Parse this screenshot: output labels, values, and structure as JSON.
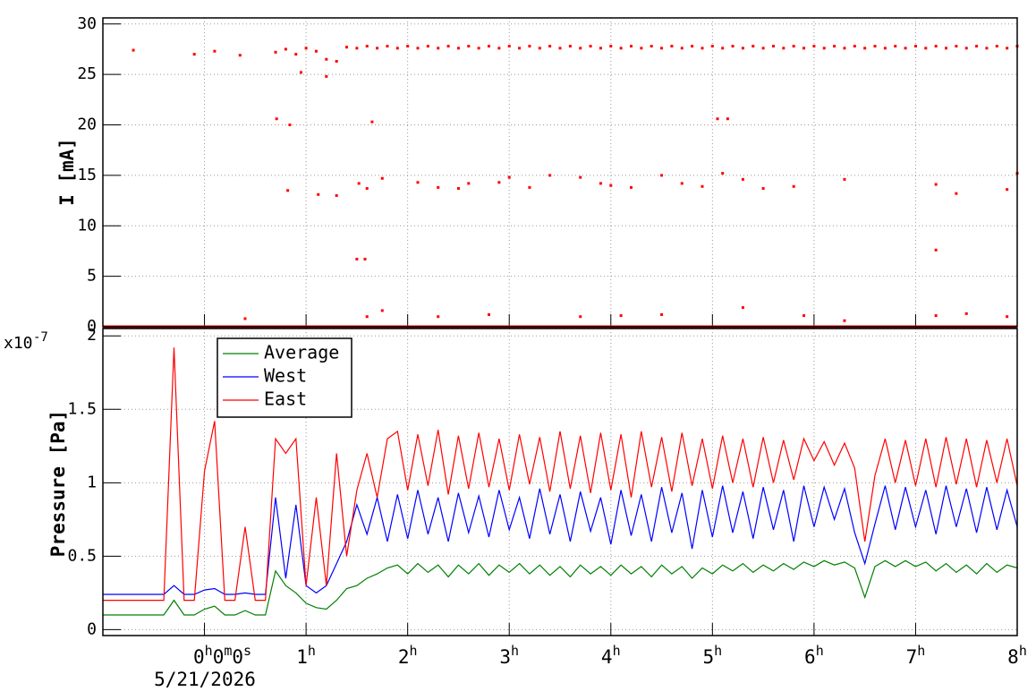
{
  "chart_data": [
    {
      "type": "scatter",
      "y_label": "I [mA]",
      "xlim": [
        -1,
        8
      ],
      "xticks": [
        0,
        1,
        2,
        3,
        4,
        5,
        6,
        7,
        8
      ],
      "ylim": [
        0,
        30.6
      ],
      "yticks": [
        0,
        5,
        10,
        15,
        20,
        25,
        30
      ],
      "grid": true,
      "series": [
        {
          "color": "#ff0000",
          "x": [
            0.7,
            0.8,
            0.9,
            1.0,
            1.1,
            1.2,
            1.3,
            1.4,
            1.5,
            1.6,
            1.7,
            1.8,
            1.9,
            2.0,
            2.1,
            2.2,
            2.3,
            2.4,
            2.5,
            2.6,
            2.7,
            2.8,
            2.9,
            3.0,
            3.1,
            3.2,
            3.3,
            3.4,
            3.5,
            3.6,
            3.7,
            3.8,
            3.9,
            4.0,
            4.1,
            4.2,
            4.3,
            4.4,
            4.5,
            4.6,
            4.7,
            4.8,
            4.9,
            5.0,
            5.1,
            5.2,
            5.3,
            5.4,
            5.5,
            5.6,
            5.7,
            5.8,
            5.9,
            6.0,
            6.1,
            6.2,
            6.3,
            6.4,
            6.5,
            6.6,
            6.7,
            6.8,
            6.9,
            7.0,
            7.1,
            7.2,
            7.3,
            7.4,
            7.5,
            7.6,
            7.7,
            7.8,
            7.9,
            8.0
          ],
          "values": [
            27.2,
            27.5,
            27.0,
            27.6,
            27.3,
            26.5,
            26.3,
            27.7,
            27.6,
            27.8,
            27.6,
            27.8,
            27.6,
            27.8,
            27.6,
            27.8,
            27.6,
            27.8,
            27.6,
            27.8,
            27.6,
            27.8,
            27.6,
            27.8,
            27.6,
            27.8,
            27.6,
            27.8,
            27.6,
            27.8,
            27.6,
            27.8,
            27.6,
            27.8,
            27.6,
            27.8,
            27.6,
            27.8,
            27.6,
            27.8,
            27.6,
            27.8,
            27.6,
            27.8,
            27.6,
            27.8,
            27.6,
            27.8,
            27.6,
            27.8,
            27.6,
            27.8,
            27.6,
            27.8,
            27.6,
            27.8,
            27.6,
            27.8,
            27.6,
            27.8,
            27.6,
            27.8,
            27.6,
            27.8,
            27.6,
            27.8,
            27.6,
            27.8,
            27.6,
            27.8,
            27.6,
            27.8,
            27.6,
            27.8
          ]
        },
        {
          "color": "#ff0000",
          "style": "line",
          "x": [
            -1,
            8
          ],
          "values": [
            0,
            0
          ]
        },
        {
          "color": "#ff0000",
          "x": [
            -0.7,
            -0.1,
            0.1,
            0.35,
            0.71,
            0.84,
            0.82,
            0.95,
            1.2,
            1.12,
            1.3,
            1.5,
            1.58,
            1.52,
            1.6,
            1.65,
            1.75,
            1.75,
            2.1,
            2.3,
            2.5,
            2.6,
            2.9,
            3.0,
            3.2,
            3.4,
            3.7,
            3.9,
            4.0,
            4.2,
            4.5,
            4.7,
            4.9,
            5.05,
            5.15,
            5.1,
            5.3,
            5.5,
            5.8,
            6.3,
            7.2,
            7.2,
            7.4,
            7.9,
            8.0,
            0.4,
            1.6,
            2.3,
            2.8,
            3.7,
            4.1,
            4.5,
            5.3,
            5.9,
            6.3,
            7.2,
            7.5,
            7.9
          ],
          "values": [
            27.4,
            27.0,
            27.3,
            26.9,
            20.6,
            20.0,
            13.5,
            25.2,
            24.8,
            13.1,
            13.0,
            6.7,
            6.7,
            14.2,
            13.7,
            20.3,
            14.7,
            1.6,
            14.3,
            13.8,
            13.7,
            14.2,
            14.3,
            14.8,
            13.8,
            15.0,
            14.8,
            14.2,
            14.0,
            13.8,
            15.0,
            14.2,
            13.9,
            20.6,
            20.6,
            15.2,
            14.6,
            13.7,
            13.9,
            14.6,
            7.6,
            14.1,
            13.2,
            13.6,
            15.2,
            0.8,
            1.0,
            1.0,
            1.2,
            1.0,
            1.1,
            1.2,
            1.9,
            1.1,
            0.6,
            1.1,
            1.3,
            1.0
          ]
        }
      ]
    },
    {
      "type": "line",
      "y_label": "Pressure [Pa]",
      "y_multiplier": "x10",
      "y_exponent": "-7",
      "x_date": "5/21/2026",
      "xlim": [
        -1,
        8
      ],
      "xticks": [
        {
          "value": 0,
          "label": "0h0m0s"
        },
        {
          "value": 1,
          "label": "1h"
        },
        {
          "value": 2,
          "label": "2h"
        },
        {
          "value": 3,
          "label": "3h"
        },
        {
          "value": 4,
          "label": "4h"
        },
        {
          "value": 5,
          "label": "5h"
        },
        {
          "value": 6,
          "label": "6h"
        },
        {
          "value": 7,
          "label": "7h"
        },
        {
          "value": 8,
          "label": "8h"
        }
      ],
      "ylim": [
        -0.04,
        2.05
      ],
      "yticks": [
        0,
        0.5,
        1,
        1.5,
        2
      ],
      "grid": true,
      "legend": "top-left",
      "x": [
        -1.0,
        -0.9,
        -0.8,
        -0.7,
        -0.6,
        -0.5,
        -0.4,
        -0.3,
        -0.2,
        -0.1,
        0.0,
        0.1,
        0.2,
        0.3,
        0.4,
        0.5,
        0.6,
        0.7,
        0.8,
        0.9,
        1.0,
        1.1,
        1.2,
        1.3,
        1.4,
        1.5,
        1.6,
        1.7,
        1.8,
        1.9,
        2.0,
        2.1,
        2.2,
        2.3,
        2.4,
        2.5,
        2.6,
        2.7,
        2.8,
        2.9,
        3.0,
        3.1,
        3.2,
        3.3,
        3.4,
        3.5,
        3.6,
        3.7,
        3.8,
        3.9,
        4.0,
        4.1,
        4.2,
        4.3,
        4.4,
        4.5,
        4.6,
        4.7,
        4.8,
        4.9,
        5.0,
        5.1,
        5.2,
        5.3,
        5.4,
        5.5,
        5.6,
        5.7,
        5.8,
        5.9,
        6.0,
        6.1,
        6.2,
        6.3,
        6.4,
        6.5,
        6.6,
        6.7,
        6.8,
        6.9,
        7.0,
        7.1,
        7.2,
        7.3,
        7.4,
        7.5,
        7.6,
        7.7,
        7.8,
        7.9,
        8.0
      ],
      "series": [
        {
          "name": "Average",
          "color": "#008000",
          "values": [
            0.1,
            0.1,
            0.1,
            0.1,
            0.1,
            0.1,
            0.1,
            0.2,
            0.1,
            0.1,
            0.14,
            0.16,
            0.1,
            0.1,
            0.13,
            0.1,
            0.1,
            0.4,
            0.3,
            0.25,
            0.18,
            0.15,
            0.14,
            0.2,
            0.28,
            0.3,
            0.35,
            0.38,
            0.42,
            0.44,
            0.38,
            0.45,
            0.39,
            0.44,
            0.36,
            0.44,
            0.38,
            0.45,
            0.37,
            0.44,
            0.39,
            0.45,
            0.38,
            0.44,
            0.37,
            0.43,
            0.36,
            0.44,
            0.38,
            0.43,
            0.37,
            0.44,
            0.38,
            0.43,
            0.36,
            0.44,
            0.38,
            0.43,
            0.35,
            0.42,
            0.38,
            0.44,
            0.4,
            0.45,
            0.39,
            0.44,
            0.4,
            0.45,
            0.41,
            0.46,
            0.43,
            0.47,
            0.44,
            0.46,
            0.42,
            0.22,
            0.43,
            0.47,
            0.43,
            0.47,
            0.43,
            0.46,
            0.4,
            0.45,
            0.39,
            0.44,
            0.38,
            0.45,
            0.39,
            0.44,
            0.42
          ]
        },
        {
          "name": "West",
          "color": "#0000ff",
          "values": [
            0.24,
            0.24,
            0.24,
            0.24,
            0.24,
            0.24,
            0.24,
            0.3,
            0.24,
            0.24,
            0.27,
            0.28,
            0.24,
            0.24,
            0.25,
            0.24,
            0.24,
            0.9,
            0.35,
            0.85,
            0.3,
            0.25,
            0.3,
            0.45,
            0.6,
            0.85,
            0.65,
            0.9,
            0.6,
            0.92,
            0.62,
            0.95,
            0.65,
            0.9,
            0.6,
            0.93,
            0.66,
            0.91,
            0.63,
            0.95,
            0.68,
            0.9,
            0.62,
            0.96,
            0.65,
            0.92,
            0.6,
            0.94,
            0.67,
            0.9,
            0.58,
            0.95,
            0.64,
            0.92,
            0.6,
            0.97,
            0.66,
            0.93,
            0.55,
            0.95,
            0.63,
            0.98,
            0.66,
            0.94,
            0.62,
            0.97,
            0.68,
            0.95,
            0.6,
            0.98,
            0.7,
            0.97,
            0.75,
            0.96,
            0.66,
            0.45,
            0.72,
            0.98,
            0.68,
            0.97,
            0.7,
            0.95,
            0.65,
            0.98,
            0.7,
            0.96,
            0.66,
            0.97,
            0.68,
            0.95,
            0.7
          ]
        },
        {
          "name": "East",
          "color": "#ff0000",
          "values": [
            0.2,
            0.2,
            0.2,
            0.2,
            0.2,
            0.2,
            0.2,
            1.92,
            0.2,
            0.2,
            1.08,
            1.42,
            0.2,
            0.2,
            0.7,
            0.2,
            0.2,
            1.3,
            1.2,
            1.3,
            0.3,
            0.9,
            0.3,
            1.2,
            0.5,
            0.95,
            1.2,
            0.9,
            1.3,
            1.35,
            0.95,
            1.33,
            0.98,
            1.36,
            0.92,
            1.32,
            0.96,
            1.34,
            0.97,
            1.3,
            0.95,
            1.33,
            0.99,
            1.31,
            0.94,
            1.35,
            0.96,
            1.32,
            0.93,
            1.34,
            0.95,
            1.33,
            0.9,
            1.35,
            0.97,
            1.31,
            0.94,
            1.34,
            0.98,
            1.3,
            0.96,
            1.32,
            1.0,
            1.3,
            0.97,
            1.31,
            1.0,
            1.29,
            1.02,
            1.3,
            1.15,
            1.28,
            1.12,
            1.27,
            1.1,
            0.6,
            1.05,
            1.3,
            1.0,
            1.29,
            0.98,
            1.3,
            0.97,
            1.31,
            0.99,
            1.3,
            0.97,
            1.29,
            1.0,
            1.3,
            0.98
          ]
        }
      ]
    }
  ]
}
